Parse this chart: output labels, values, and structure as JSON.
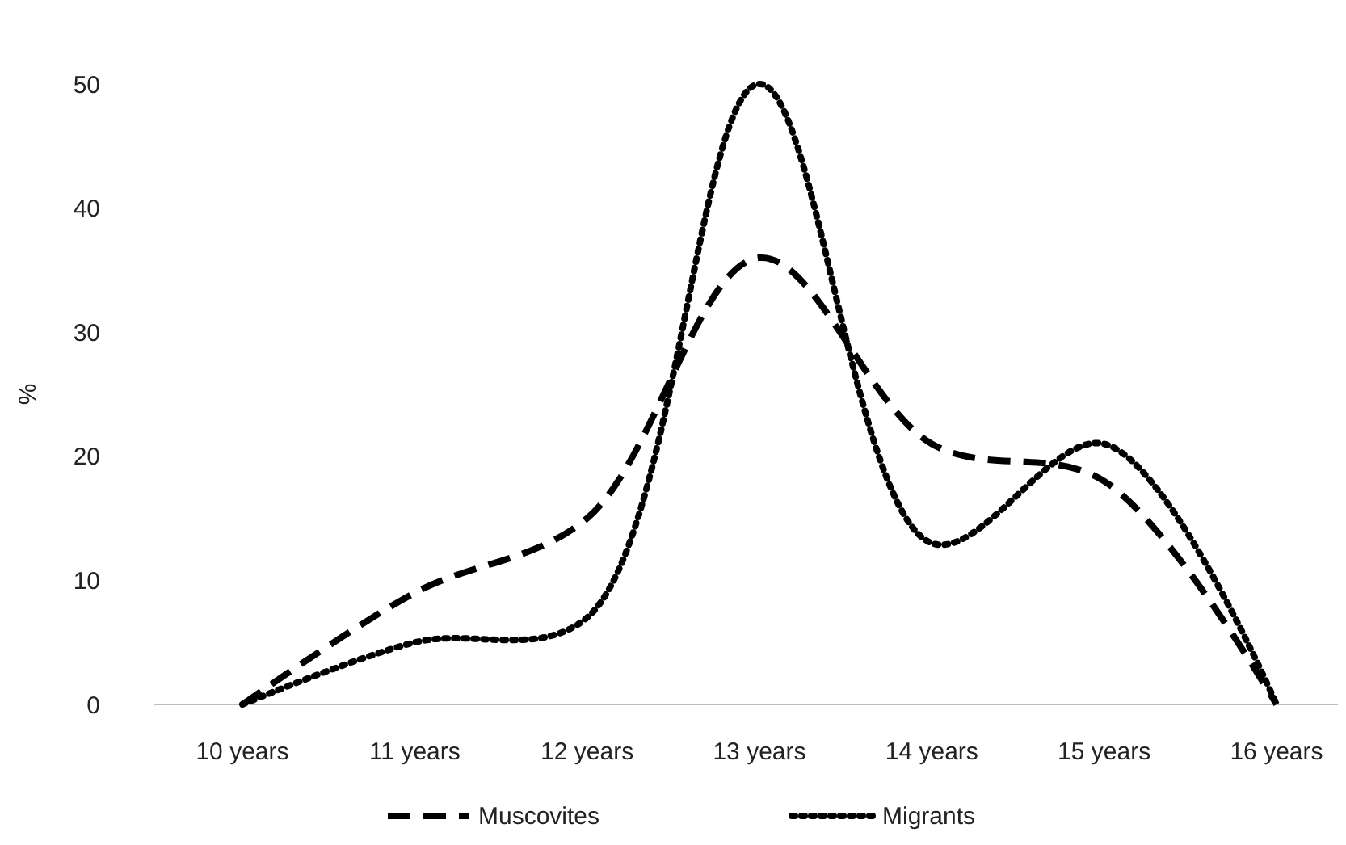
{
  "chart_data": {
    "type": "line",
    "ylabel": "%",
    "categories": [
      "10 years",
      "11 years",
      "12 years",
      "13 years",
      "14 years",
      "15 years",
      "16 years"
    ],
    "series": [
      {
        "name": "Muscovites",
        "color": "#000000",
        "line_style": "dashed",
        "values": [
          0,
          9,
          15,
          36,
          21,
          18,
          0
        ]
      },
      {
        "name": "Migrants",
        "color": "#000000",
        "line_style": "dotted",
        "values": [
          0,
          5,
          7,
          50,
          13,
          21,
          0
        ]
      }
    ],
    "ylim": [
      0,
      50
    ],
    "yticks": [
      0,
      10,
      20,
      30,
      40,
      50
    ],
    "grid": false,
    "legend": "bottom"
  }
}
